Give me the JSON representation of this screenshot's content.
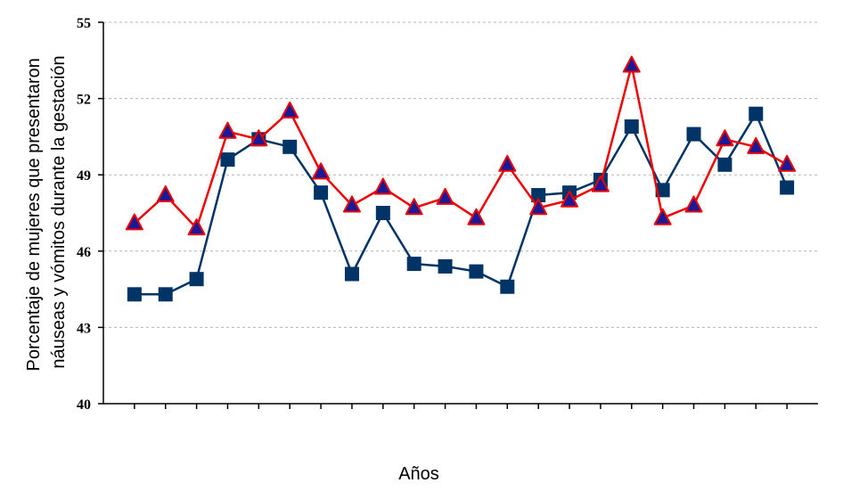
{
  "chart_data": {
    "type": "line",
    "ylabel_lines": [
      "Porcentaje de mujeres que presentaron",
      "náuseas y vómitos durante la gestación"
    ],
    "xlabel": "Años",
    "ylim": [
      40,
      55
    ],
    "yticks": [
      40,
      43,
      46,
      49,
      52,
      55
    ],
    "grid": "horizontal dashed",
    "series": [
      {
        "color": "#003366",
        "marker": "square",
        "values": [
          44.3,
          44.3,
          44.9,
          49.6,
          50.4,
          50.1,
          48.3,
          45.1,
          47.5,
          45.5,
          45.4,
          45.2,
          44.6,
          48.2,
          48.3,
          48.8,
          50.9,
          48.4,
          50.6,
          49.4,
          51.4,
          48.5
        ]
      },
      {
        "color": "#ee0000",
        "marker": "triangle",
        "marker_color": "#1a1a99",
        "values": [
          47.1,
          48.2,
          46.9,
          50.7,
          50.4,
          51.5,
          49.1,
          47.8,
          48.5,
          47.7,
          48.1,
          47.3,
          49.4,
          47.7,
          48.0,
          48.6,
          53.3,
          47.3,
          47.8,
          50.4,
          50.1,
          49.4
        ]
      }
    ]
  }
}
